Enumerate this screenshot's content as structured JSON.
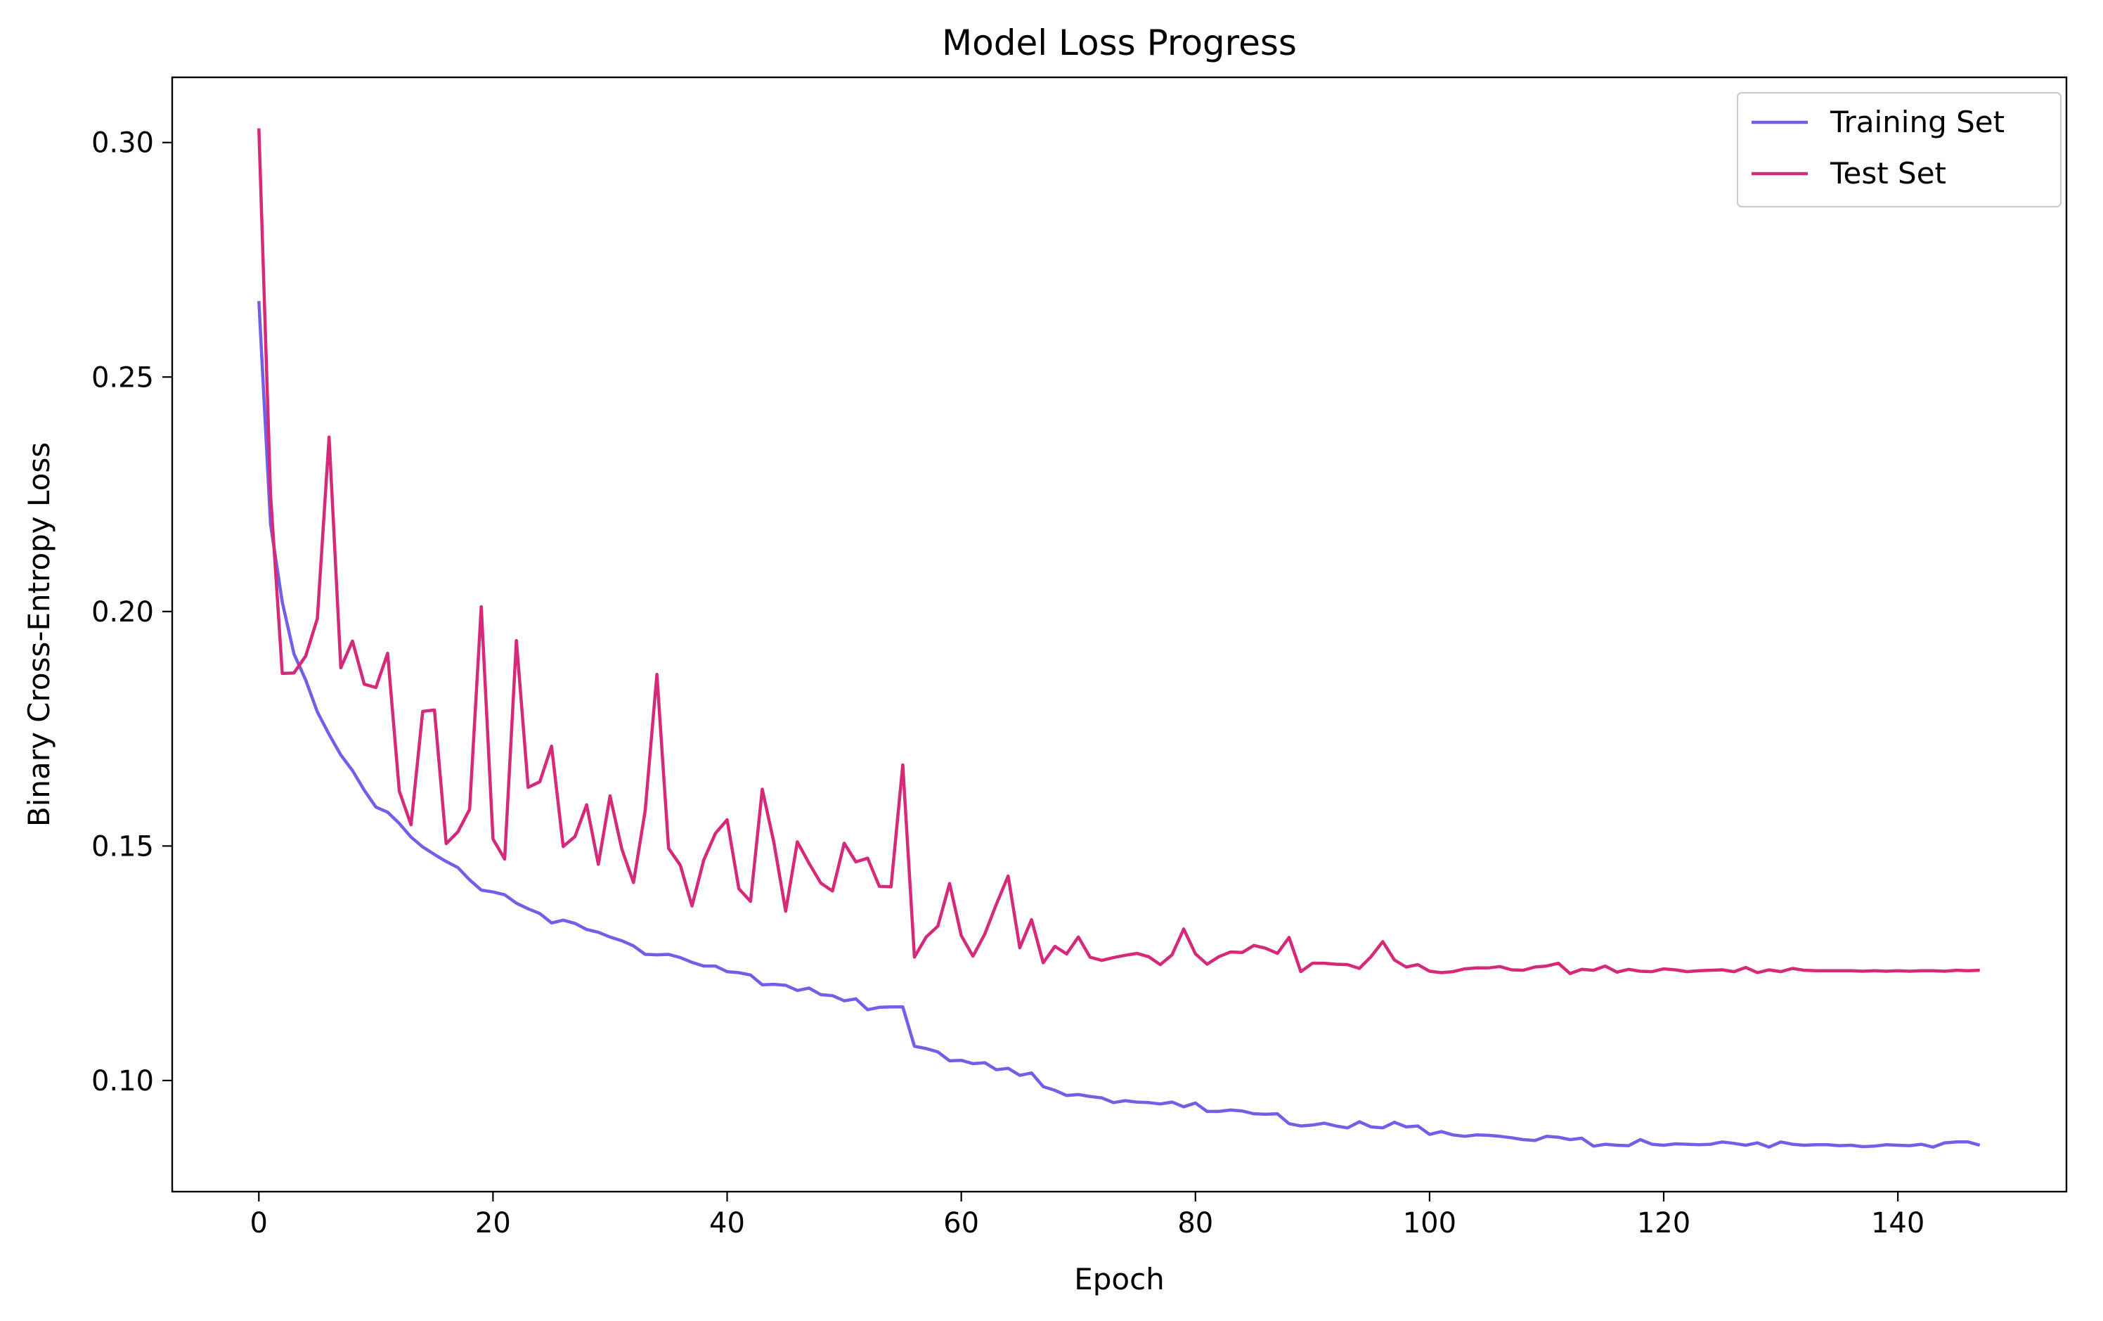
{
  "chart_data": {
    "type": "line",
    "title": "Model Loss Progress",
    "xlabel": "Epoch",
    "ylabel": "Binary Cross-Entropy Loss",
    "xlim": [
      -7.4,
      154.4
    ],
    "ylim": [
      0.0763,
      0.3139
    ],
    "x_ticks": [
      0,
      20,
      40,
      60,
      80,
      100,
      120,
      140
    ],
    "y_ticks": [
      0.1,
      0.15,
      0.2,
      0.25,
      0.3
    ],
    "x_tick_labels": [
      "0",
      "20",
      "40",
      "60",
      "80",
      "100",
      "120",
      "140"
    ],
    "y_tick_labels": [
      "0.10",
      "0.15",
      "0.20",
      "0.25",
      "0.30"
    ],
    "grid": false,
    "legend_position": "top-right",
    "series": [
      {
        "name": "Training Set",
        "color": "#7060E8",
        "values": [
          0.2662,
          0.2186,
          0.202,
          0.191,
          0.1854,
          0.1786,
          0.1738,
          0.1694,
          0.1661,
          0.1619,
          0.1583,
          0.1572,
          0.1548,
          0.1519,
          0.1498,
          0.1482,
          0.1467,
          0.1454,
          0.1428,
          0.1406,
          0.1402,
          0.1396,
          0.1378,
          0.1366,
          0.1356,
          0.1336,
          0.1342,
          0.1335,
          0.1322,
          0.1316,
          0.1306,
          0.1298,
          0.1287,
          0.1269,
          0.1268,
          0.1269,
          0.1262,
          0.1252,
          0.1244,
          0.1244,
          0.1232,
          0.123,
          0.1225,
          0.1204,
          0.1205,
          0.1203,
          0.1192,
          0.1197,
          0.1183,
          0.1181,
          0.117,
          0.1174,
          0.1151,
          0.1156,
          0.1157,
          0.1157,
          0.1073,
          0.1068,
          0.1061,
          0.1042,
          0.1043,
          0.1036,
          0.1038,
          0.1023,
          0.1026,
          0.1011,
          0.1016,
          0.0987,
          0.0979,
          0.0968,
          0.097,
          0.0966,
          0.0963,
          0.0953,
          0.0957,
          0.0954,
          0.0953,
          0.095,
          0.0954,
          0.0944,
          0.0952,
          0.0934,
          0.0934,
          0.0937,
          0.0935,
          0.0929,
          0.0928,
          0.0929,
          0.0908,
          0.0903,
          0.0905,
          0.0909,
          0.0903,
          0.0899,
          0.0912,
          0.0901,
          0.0899,
          0.0911,
          0.0901,
          0.0903,
          0.0885,
          0.0891,
          0.0884,
          0.0881,
          0.0884,
          0.0883,
          0.0881,
          0.0878,
          0.0874,
          0.0872,
          0.0881,
          0.0879,
          0.0874,
          0.0877,
          0.086,
          0.0864,
          0.0862,
          0.0861,
          0.0874,
          0.0864,
          0.0862,
          0.0865,
          0.0864,
          0.0863,
          0.0864,
          0.0869,
          0.0866,
          0.0862,
          0.0867,
          0.0858,
          0.0869,
          0.0864,
          0.0862,
          0.0863,
          0.0863,
          0.0861,
          0.0862,
          0.0859,
          0.086,
          0.0863,
          0.0862,
          0.0861,
          0.0864,
          0.0858,
          0.0867,
          0.0869,
          0.0869,
          0.0862
        ]
      },
      {
        "name": "Test Set",
        "color": "#D6297A",
        "values": [
          0.303,
          0.225,
          0.1868,
          0.1869,
          0.1905,
          0.1985,
          0.2372,
          0.188,
          0.1937,
          0.1845,
          0.1838,
          0.1911,
          0.1617,
          0.1545,
          0.1787,
          0.179,
          0.1505,
          0.153,
          0.1578,
          0.201,
          0.1515,
          0.1472,
          0.1938,
          0.1625,
          0.1637,
          0.1713,
          0.1499,
          0.152,
          0.1588,
          0.1461,
          0.1607,
          0.1494,
          0.1422,
          0.1575,
          0.1866,
          0.1495,
          0.1459,
          0.1372,
          0.147,
          0.1527,
          0.1556,
          0.1409,
          0.1382,
          0.1621,
          0.1507,
          0.1361,
          0.1509,
          0.1463,
          0.1421,
          0.1404,
          0.1506,
          0.1466,
          0.1474,
          0.1414,
          0.1413,
          0.1673,
          0.1263,
          0.1306,
          0.1329,
          0.142,
          0.1309,
          0.1265,
          0.1312,
          0.1376,
          0.1436,
          0.1283,
          0.1343,
          0.1251,
          0.1286,
          0.127,
          0.1306,
          0.1263,
          0.1256,
          0.1262,
          0.1267,
          0.1271,
          0.1264,
          0.1247,
          0.1268,
          0.1323,
          0.127,
          0.1248,
          0.1264,
          0.1274,
          0.1273,
          0.1288,
          0.1282,
          0.1271,
          0.1305,
          0.1232,
          0.125,
          0.125,
          0.1248,
          0.1247,
          0.1239,
          0.1264,
          0.1296,
          0.1257,
          0.1242,
          0.1247,
          0.1233,
          0.123,
          0.1232,
          0.1238,
          0.124,
          0.124,
          0.1243,
          0.1236,
          0.1235,
          0.1242,
          0.1244,
          0.125,
          0.1228,
          0.1237,
          0.1235,
          0.1244,
          0.1231,
          0.1237,
          0.1233,
          0.1232,
          0.1238,
          0.1236,
          0.1232,
          0.1234,
          0.1235,
          0.1236,
          0.1232,
          0.1241,
          0.123,
          0.1236,
          0.1232,
          0.1239,
          0.1235,
          0.1234,
          0.1234,
          0.1234,
          0.1234,
          0.1233,
          0.1234,
          0.1233,
          0.1234,
          0.1233,
          0.1234,
          0.1234,
          0.1233,
          0.1235,
          0.1234,
          0.1235
        ]
      }
    ]
  }
}
